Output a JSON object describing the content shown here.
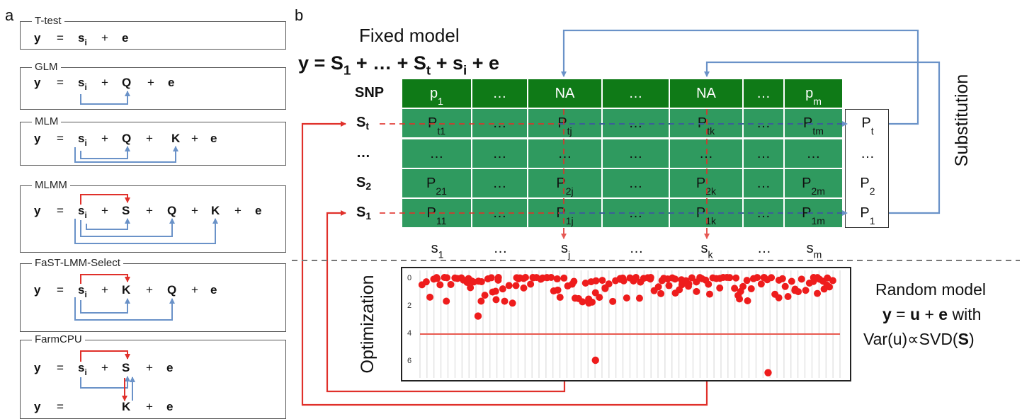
{
  "panels": {
    "a": "a",
    "b": "b"
  },
  "models": [
    {
      "title": "T-test",
      "line1": [
        {
          "t": "y",
          "b": true,
          "x": 48
        },
        {
          "t": "=",
          "x": 80
        },
        {
          "t": "s",
          "sub": "i",
          "b": true,
          "x": 110
        },
        {
          "t": "+",
          "x": 143
        },
        {
          "t": "e",
          "b": true,
          "x": 172
        }
      ]
    },
    {
      "title": "GLM",
      "line1": [
        {
          "t": "y",
          "b": true,
          "x": 48
        },
        {
          "t": "=",
          "x": 80
        },
        {
          "t": "s",
          "sub": "i",
          "b": true,
          "x": 110
        },
        {
          "t": "+",
          "x": 143
        },
        {
          "t": "Q",
          "b": true,
          "x": 172
        },
        {
          "t": "+",
          "x": 208
        },
        {
          "t": "e",
          "b": true,
          "x": 237
        }
      ]
    },
    {
      "title": "MLM",
      "line1": [
        {
          "t": "y",
          "b": true,
          "x": 48
        },
        {
          "t": "=",
          "x": 80
        },
        {
          "t": "s",
          "sub": "i",
          "b": true,
          "x": 110
        },
        {
          "t": "+",
          "x": 143
        },
        {
          "t": "Q",
          "b": true,
          "x": 172
        },
        {
          "t": "+",
          "x": 206
        },
        {
          "t": "K",
          "b": true,
          "x": 242
        },
        {
          "t": "+",
          "x": 270
        },
        {
          "t": "e",
          "b": true,
          "x": 297
        }
      ]
    },
    {
      "title": "MLMM",
      "line1": [
        {
          "t": "y",
          "b": true,
          "x": 48
        },
        {
          "t": "=",
          "x": 80
        },
        {
          "t": "s",
          "sub": "i",
          "b": true,
          "x": 110
        },
        {
          "t": "+",
          "x": 143
        },
        {
          "t": "S",
          "b": true,
          "x": 172
        },
        {
          "t": "+",
          "x": 206
        },
        {
          "t": "Q",
          "b": true,
          "x": 236
        },
        {
          "t": "+",
          "x": 270
        },
        {
          "t": "K",
          "b": true,
          "x": 298
        },
        {
          "t": "+",
          "x": 331
        },
        {
          "t": "e",
          "b": true,
          "x": 360
        }
      ]
    },
    {
      "title": "FaST-LMM-Select",
      "line1": [
        {
          "t": "y",
          "b": true,
          "x": 48
        },
        {
          "t": "=",
          "x": 80
        },
        {
          "t": "s",
          "sub": "i",
          "b": true,
          "x": 110
        },
        {
          "t": "+",
          "x": 143
        },
        {
          "t": "K",
          "b": true,
          "x": 172
        },
        {
          "t": "+",
          "x": 206
        },
        {
          "t": "Q",
          "b": true,
          "x": 236
        },
        {
          "t": "+",
          "x": 270
        },
        {
          "t": "e",
          "b": true,
          "x": 297
        }
      ]
    },
    {
      "title": "FarmCPU",
      "line1": [
        {
          "t": "y",
          "b": true,
          "x": 48
        },
        {
          "t": "=",
          "x": 80
        },
        {
          "t": "s",
          "sub": "i",
          "b": true,
          "x": 110
        },
        {
          "t": "+",
          "x": 143
        },
        {
          "t": "S",
          "b": true,
          "x": 172
        },
        {
          "t": "+",
          "x": 206
        },
        {
          "t": "e",
          "b": true,
          "x": 235
        }
      ],
      "line2": [
        {
          "t": "y",
          "b": true,
          "x": 48
        },
        {
          "t": "=",
          "x": 80
        },
        {
          "t": "K",
          "b": true,
          "x": 172
        },
        {
          "t": "+",
          "x": 206
        },
        {
          "t": "e",
          "b": true,
          "x": 235
        }
      ]
    }
  ],
  "fixed_model": {
    "title": "Fixed model",
    "eq_y": "y",
    "eq_eq": " = ",
    "S": "S",
    "sub1": "1",
    "plus1": " + … + ",
    "subt": "t",
    "plus2": " + ",
    "s": "s",
    "subi": "i",
    "plus3": " + ",
    "e": "e"
  },
  "table": {
    "header_label": "SNP",
    "header": [
      {
        "m": "p",
        "s": "1"
      },
      {
        "m": "…",
        "s": ""
      },
      {
        "m": "NA",
        "s": ""
      },
      {
        "m": "…",
        "s": ""
      },
      {
        "m": "NA",
        "s": ""
      },
      {
        "m": "…",
        "s": ""
      },
      {
        "m": "p",
        "s": "m"
      }
    ],
    "rows": [
      {
        "label": "S",
        "sub": "t",
        "cells": [
          {
            "m": "P",
            "s": "t1"
          },
          {
            "m": "…",
            "s": ""
          },
          {
            "m": "P",
            "s": "tj"
          },
          {
            "m": "…",
            "s": ""
          },
          {
            "m": "P",
            "s": "tk"
          },
          {
            "m": "…",
            "s": ""
          },
          {
            "m": "P",
            "s": "tm"
          }
        ],
        "side": {
          "m": "P",
          "s": "t"
        }
      },
      {
        "label": "…",
        "sub": "",
        "cells": [
          {
            "m": "…",
            "s": ""
          },
          {
            "m": "…",
            "s": ""
          },
          {
            "m": "…",
            "s": ""
          },
          {
            "m": "…",
            "s": ""
          },
          {
            "m": "…",
            "s": ""
          },
          {
            "m": "…",
            "s": ""
          },
          {
            "m": "…",
            "s": ""
          }
        ],
        "side": {
          "m": "…",
          "s": ""
        }
      },
      {
        "label": "S",
        "sub": "2",
        "cells": [
          {
            "m": "P",
            "s": "21"
          },
          {
            "m": "…",
            "s": ""
          },
          {
            "m": "P",
            "s": "2j"
          },
          {
            "m": "…",
            "s": ""
          },
          {
            "m": "P",
            "s": "2k"
          },
          {
            "m": "…",
            "s": ""
          },
          {
            "m": "P",
            "s": "2m"
          }
        ],
        "side": {
          "m": "P",
          "s": "2"
        }
      },
      {
        "label": "S",
        "sub": "1",
        "cells": [
          {
            "m": "P",
            "s": "11"
          },
          {
            "m": "…",
            "s": ""
          },
          {
            "m": "P",
            "s": "1j"
          },
          {
            "m": "…",
            "s": ""
          },
          {
            "m": "P",
            "s": "1k"
          },
          {
            "m": "…",
            "s": ""
          },
          {
            "m": "P",
            "s": "1m"
          }
        ],
        "side": {
          "m": "P",
          "s": "1"
        }
      }
    ],
    "bottom": [
      {
        "m": "s",
        "s": "1"
      },
      {
        "m": "…",
        "s": ""
      },
      {
        "m": "s",
        "s": "j"
      },
      {
        "m": "…",
        "s": ""
      },
      {
        "m": "s",
        "s": "k"
      },
      {
        "m": "…",
        "s": ""
      },
      {
        "m": "s",
        "s": "m"
      }
    ]
  },
  "labels": {
    "substitution": "Substitution",
    "optimization": "Optimization"
  },
  "random_model": {
    "line1": "Random model",
    "y": "y",
    "eq": " = ",
    "u": "u",
    "plus": " + ",
    "e": "e",
    "with": " with",
    "var": "Var(u)",
    "prop": "∝",
    "svd": "SVD(",
    "S": "S",
    "close": ")"
  },
  "plot": {
    "yticks": [
      "0",
      "2",
      "4",
      "6"
    ],
    "threshold": 4.1,
    "outliers": [
      {
        "col": 16,
        "y": 2.8
      },
      {
        "col": 50,
        "y": 6.0
      },
      {
        "col": 100,
        "y": 6.9
      }
    ]
  },
  "colors": {
    "header_green": "#0f7a17",
    "cell_green": "#2f9a5f",
    "red": "#e0302a",
    "blue": "#6a92c8",
    "dot": "#ee1c1c"
  }
}
